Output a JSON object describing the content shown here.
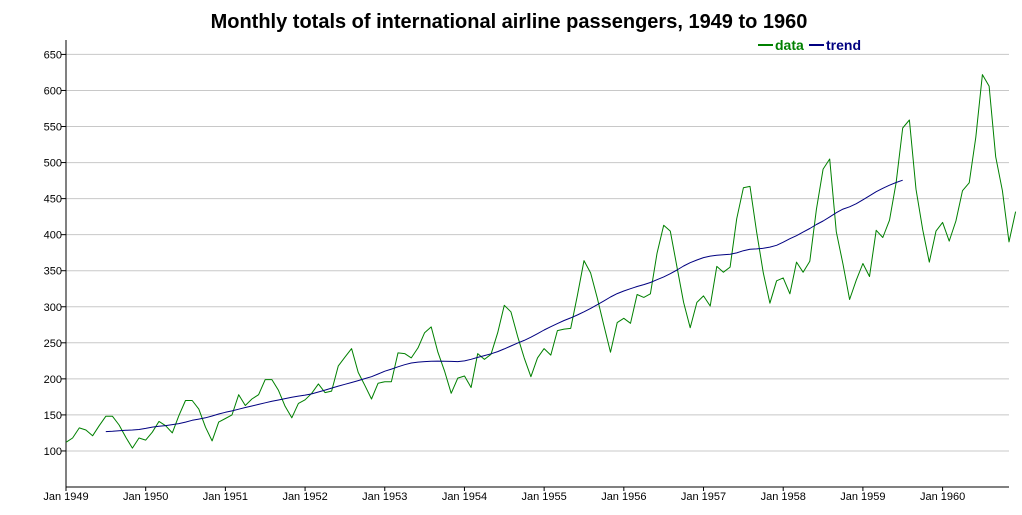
{
  "chart_data": {
    "type": "line",
    "title": "Monthly totals of international airline passengers, 1949 to 1960",
    "xlabel": "",
    "ylabel": "",
    "grid": true,
    "legend_position": "top-right",
    "ylim": [
      50,
      670
    ],
    "yticks": [
      100,
      150,
      200,
      250,
      300,
      350,
      400,
      450,
      500,
      550,
      600,
      650
    ],
    "xlim": [
      0,
      142
    ],
    "xticks": [
      {
        "index": 0,
        "label": "Jan 1949"
      },
      {
        "index": 12,
        "label": "Jan 1950"
      },
      {
        "index": 24,
        "label": "Jan 1951"
      },
      {
        "index": 36,
        "label": "Jan 1952"
      },
      {
        "index": 48,
        "label": "Jan 1953"
      },
      {
        "index": 60,
        "label": "Jan 1954"
      },
      {
        "index": 72,
        "label": "Jan 1955"
      },
      {
        "index": 84,
        "label": "Jan 1956"
      },
      {
        "index": 96,
        "label": "Jan 1957"
      },
      {
        "index": 108,
        "label": "Jan 1958"
      },
      {
        "index": 120,
        "label": "Jan 1959"
      },
      {
        "index": 132,
        "label": "Jan 1960"
      }
    ],
    "series": [
      {
        "name": "data",
        "color": "#008000",
        "start_index": 0,
        "values": [
          112,
          118,
          132,
          129,
          121,
          135,
          148,
          148,
          136,
          119,
          104,
          118,
          115,
          126,
          141,
          135,
          125,
          149,
          170,
          170,
          158,
          133,
          114,
          140,
          145,
          150,
          178,
          163,
          172,
          178,
          199,
          199,
          184,
          162,
          146,
          166,
          171,
          180,
          193,
          181,
          183,
          218,
          230,
          242,
          209,
          191,
          172,
          194,
          196,
          196,
          236,
          235,
          229,
          243,
          264,
          272,
          237,
          211,
          180,
          201,
          204,
          188,
          235,
          227,
          234,
          264,
          302,
          293,
          259,
          229,
          203,
          229,
          242,
          233,
          267,
          269,
          270,
          315,
          364,
          347,
          312,
          274,
          237,
          278,
          284,
          277,
          317,
          313,
          318,
          374,
          413,
          405,
          355,
          306,
          271,
          306,
          315,
          301,
          356,
          348,
          355,
          422,
          465,
          467,
          404,
          347,
          305,
          336,
          340,
          318,
          362,
          348,
          363,
          435,
          491,
          505,
          404,
          359,
          310,
          337,
          360,
          342,
          406,
          396,
          420,
          472,
          548,
          559,
          463,
          407,
          362,
          405,
          417,
          391,
          419,
          461,
          472,
          535,
          622,
          606,
          508,
          461,
          390,
          432
        ]
      },
      {
        "name": "trend",
        "color": "#000080",
        "start_index": 6,
        "values": [
          126.8,
          127.2,
          127.9,
          128.6,
          129.0,
          129.8,
          131.3,
          133.1,
          134.3,
          135.1,
          136.5,
          138.0,
          140.0,
          142.5,
          144.2,
          146.0,
          148.5,
          151.2,
          153.6,
          155.6,
          157.9,
          160.2,
          162.4,
          164.5,
          166.8,
          168.9,
          170.7,
          172.6,
          174.6,
          176.1,
          177.5,
          179.1,
          181.8,
          184.4,
          187.2,
          190.0,
          192.4,
          195.0,
          197.6,
          200.4,
          203.0,
          206.8,
          210.6,
          213.5,
          216.7,
          219.6,
          222.0,
          223.2,
          223.9,
          224.5,
          224.6,
          224.4,
          224.2,
          224.0,
          224.9,
          227.1,
          229.8,
          232.3,
          234.8,
          237.8,
          241.5,
          245.6,
          249.6,
          253.3,
          257.8,
          262.6,
          267.7,
          272.4,
          276.7,
          280.9,
          284.6,
          288.6,
          293.0,
          297.7,
          302.8,
          308.1,
          313.6,
          318.2,
          321.8,
          325.1,
          328.1,
          330.7,
          333.7,
          337.5,
          341.4,
          345.8,
          351.0,
          356.5,
          361.1,
          364.9,
          368.2,
          370.3,
          371.4,
          372.0,
          372.9,
          374.7,
          377.7,
          379.8,
          380.3,
          381.1,
          382.7,
          385.3,
          389.5,
          394.4,
          398.6,
          403.5,
          408.6,
          414.1,
          419.0,
          424.6,
          430.5,
          435.4,
          438.6,
          443.0,
          448.4,
          453.9,
          459.6,
          464.3,
          468.6,
          472.4,
          475.6
        ]
      }
    ]
  }
}
